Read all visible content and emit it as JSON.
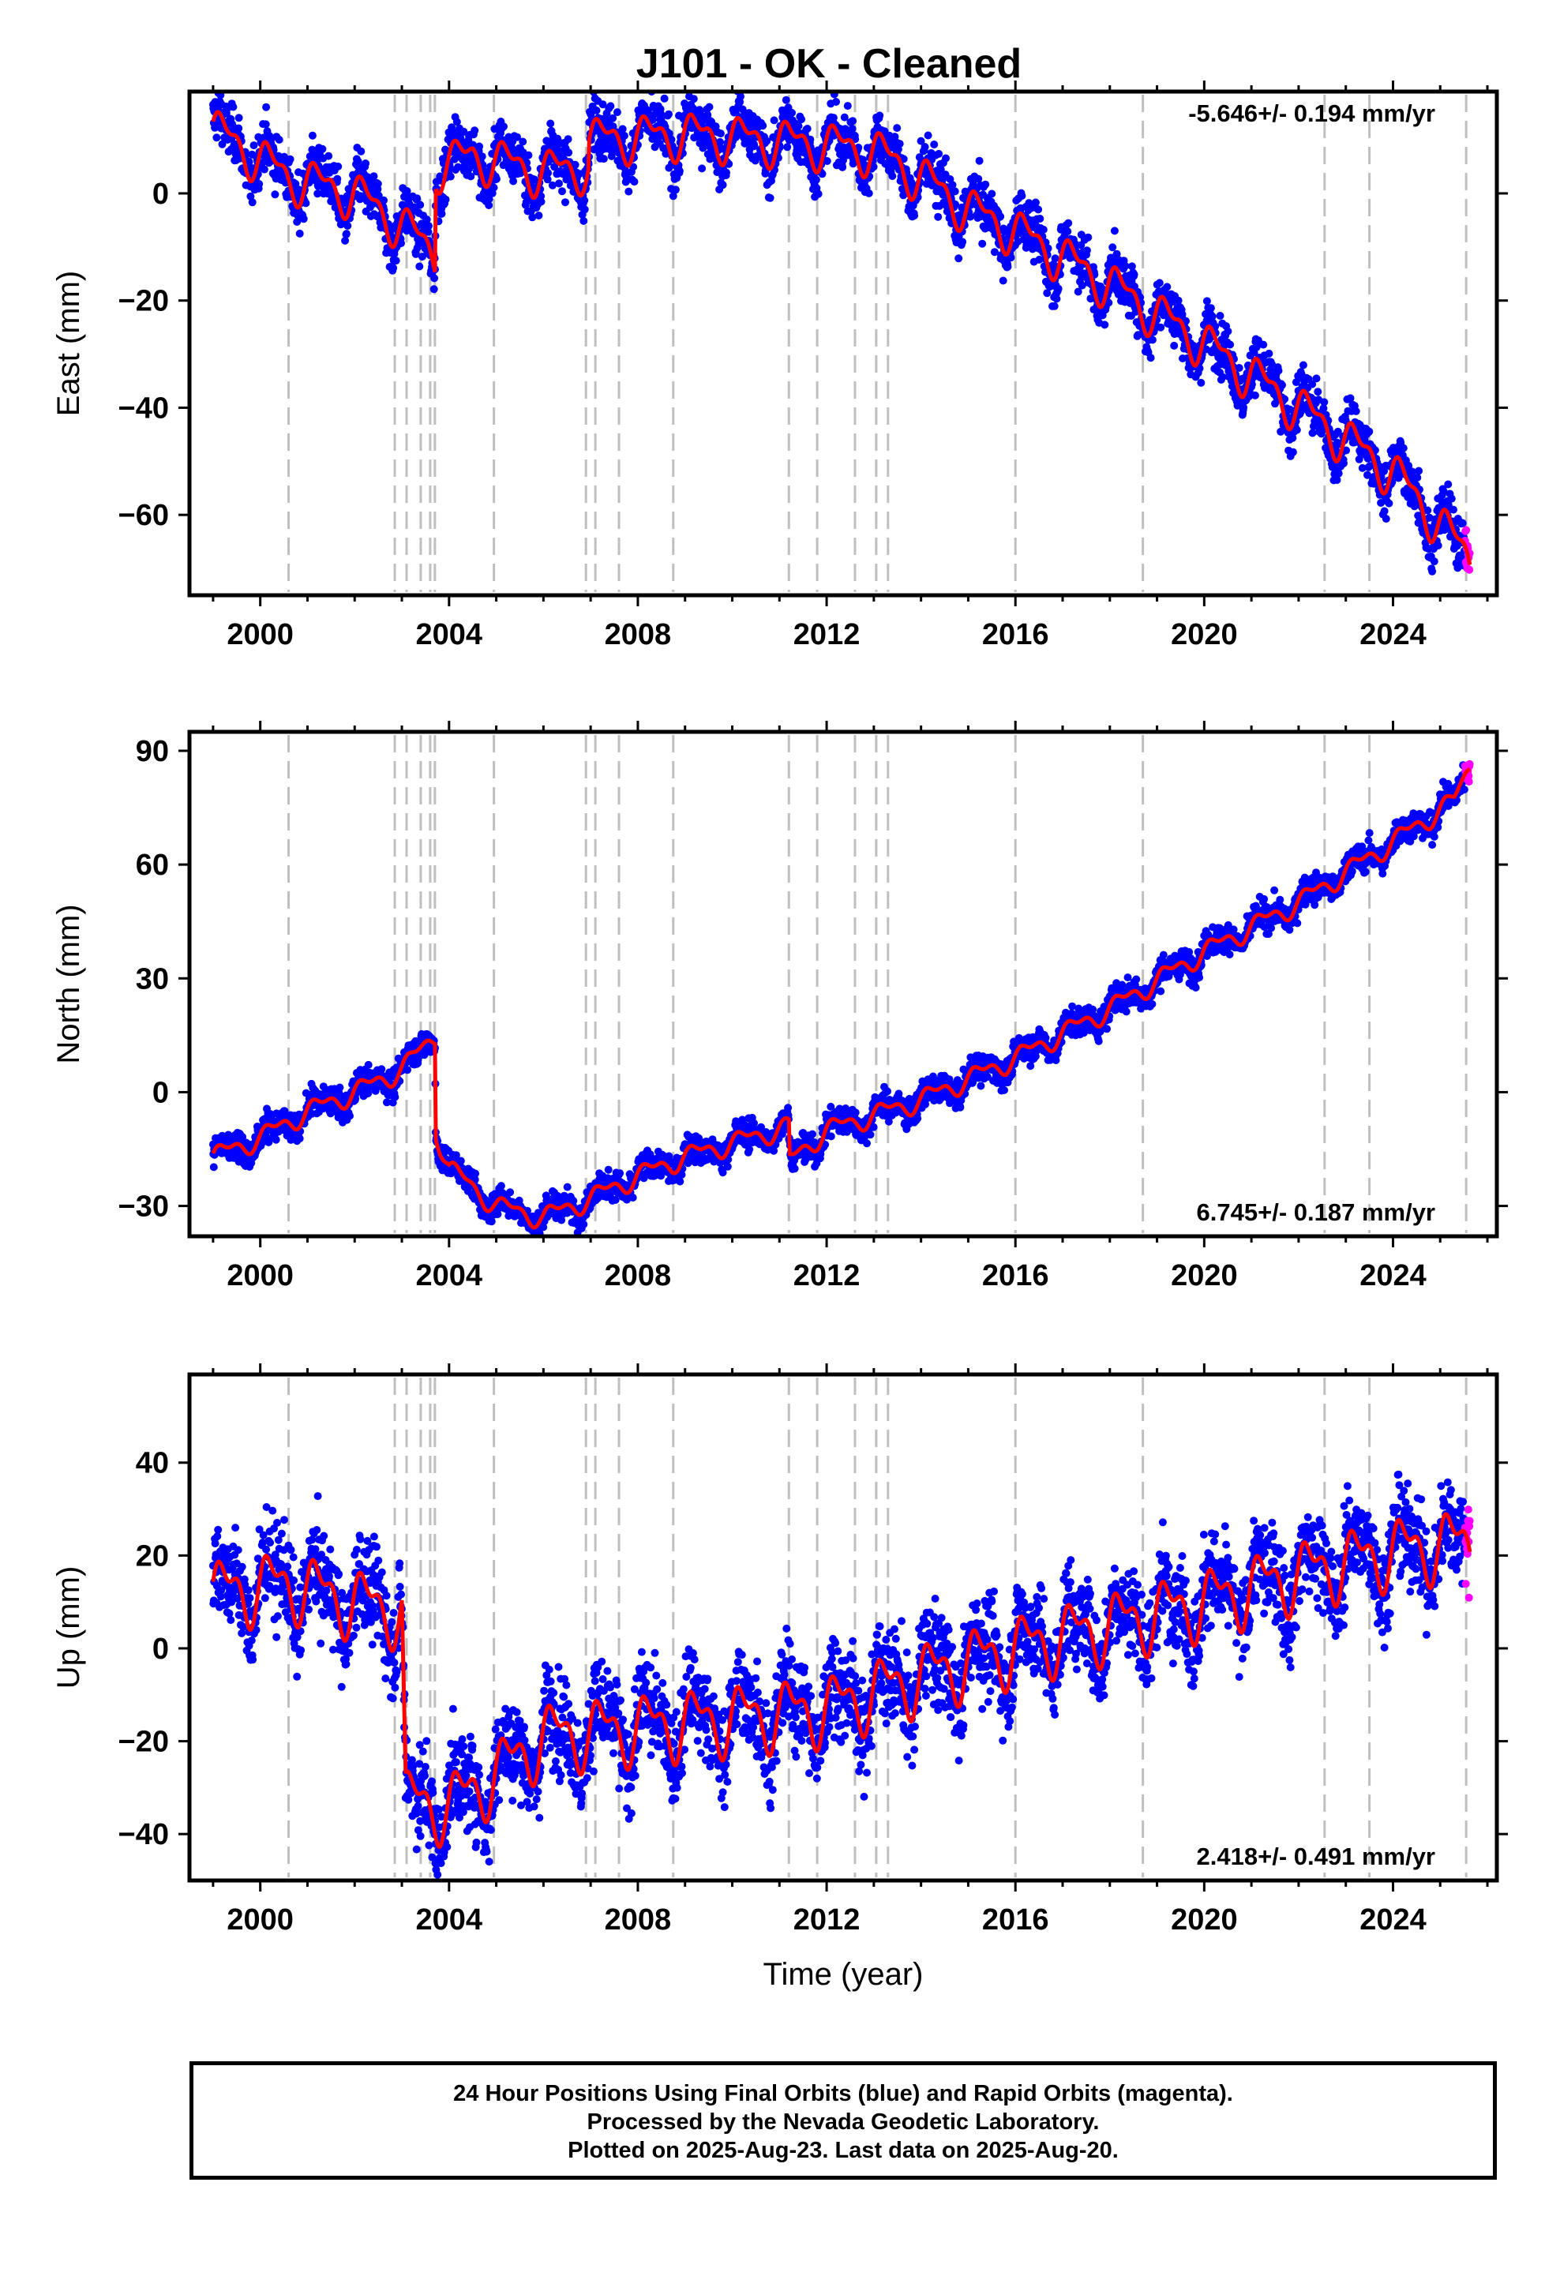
{
  "title": "J101  - OK - Cleaned",
  "footer": {
    "line1": "24 Hour Positions Using Final Orbits (blue) and Rapid Orbits (magenta).",
    "line2": "Processed by the Nevada Geodetic Laboratory.",
    "line3": "Plotted on 2025-Aug-23. Last data on 2025-Aug-20."
  },
  "colors": {
    "final_orbits": "#0000ff",
    "rapid_orbits": "#ff00ff",
    "model_fit": "#ff0000",
    "event_lines": "#bfbfbf"
  },
  "chart_data": [
    {
      "type": "scatter",
      "panel": "east",
      "ylabel": "East (mm)",
      "xlabel": "",
      "xlim": [
        1998.5,
        2026.2
      ],
      "ylim": [
        -75,
        19
      ],
      "xticks": [
        2000,
        2004,
        2008,
        2012,
        2016,
        2020,
        2024
      ],
      "yticks": [
        -60,
        -40,
        -20,
        0
      ],
      "rate_label": "-5.646+/- 0.194 mm/yr",
      "rate_position": "top-right",
      "data_start": 1999.0,
      "data_end": 2025.63,
      "rapid_start": 2025.52,
      "trend": [
        [
          1999.0,
          12
        ],
        [
          2000.6,
          3
        ],
        [
          2002.0,
          0
        ],
        [
          2003.0,
          -6
        ],
        [
          2003.7,
          -11
        ],
        [
          2003.72,
          5
        ],
        [
          2004.5,
          7
        ],
        [
          2006.0,
          4
        ],
        [
          2006.95,
          5
        ],
        [
          2006.97,
          10
        ],
        [
          2009.0,
          11
        ],
        [
          2012.0,
          9
        ],
        [
          2013.0,
          8
        ],
        [
          2014.0,
          3
        ],
        [
          2015.0,
          -3
        ],
        [
          2016.0,
          -7
        ],
        [
          2018.0,
          -17
        ],
        [
          2020.0,
          -28
        ],
        [
          2022.0,
          -40
        ],
        [
          2024.0,
          -52
        ],
        [
          2025.63,
          -68
        ]
      ],
      "scatter_sd": 2.4,
      "seasonal_amp": 3.5,
      "events": [
        2000.6,
        2002.85,
        2003.1,
        2003.4,
        2003.6,
        2003.7,
        2004.95,
        2006.9,
        2007.1,
        2007.6,
        2008.75,
        2011.2,
        2011.8,
        2012.6,
        2013.05,
        2013.3,
        2016.0,
        2018.7,
        2022.55,
        2023.5,
        2025.55
      ]
    },
    {
      "type": "scatter",
      "panel": "north",
      "ylabel": "North (mm)",
      "xlabel": "",
      "xlim": [
        1998.5,
        2026.2
      ],
      "ylim": [
        -38,
        95
      ],
      "xticks": [
        2000,
        2004,
        2008,
        2012,
        2016,
        2020,
        2024
      ],
      "yticks": [
        -30,
        0,
        30,
        60,
        90
      ],
      "rate_label": "6.745+/- 0.187 mm/yr",
      "rate_position": "bottom-right",
      "data_start": 1999.0,
      "data_end": 2025.63,
      "rapid_start": 2025.52,
      "trend": [
        [
          1999.0,
          -17
        ],
        [
          2000.0,
          -12
        ],
        [
          2001.0,
          -5
        ],
        [
          2002.0,
          0
        ],
        [
          2003.0,
          6
        ],
        [
          2003.7,
          15
        ],
        [
          2003.72,
          -10
        ],
        [
          2004.0,
          -20
        ],
        [
          2005.0,
          -30
        ],
        [
          2006.0,
          -33
        ],
        [
          2007.0,
          -28
        ],
        [
          2008.0,
          -22
        ],
        [
          2009.0,
          -17
        ],
        [
          2011.2,
          -9
        ],
        [
          2011.22,
          -18
        ],
        [
          2012.0,
          -10
        ],
        [
          2013.0,
          -6
        ],
        [
          2014.0,
          -2
        ],
        [
          2016.0,
          9
        ],
        [
          2018.0,
          22
        ],
        [
          2020.0,
          37
        ],
        [
          2022.0,
          50
        ],
        [
          2024.0,
          66
        ],
        [
          2025.3,
          77
        ],
        [
          2025.63,
          86
        ]
      ],
      "scatter_sd": 1.8,
      "seasonal_amp": 2.2,
      "events": [
        2000.6,
        2002.85,
        2003.1,
        2003.4,
        2003.6,
        2003.7,
        2004.95,
        2006.9,
        2007.1,
        2007.6,
        2008.75,
        2011.2,
        2011.8,
        2012.6,
        2013.05,
        2013.3,
        2016.0,
        2018.7,
        2022.55,
        2023.5,
        2025.55
      ]
    },
    {
      "type": "scatter",
      "panel": "up",
      "ylabel": "Up (mm)",
      "xlabel": "Time (year)",
      "xlim": [
        1998.5,
        2026.2
      ],
      "ylim": [
        -50,
        59
      ],
      "xticks": [
        2000,
        2004,
        2008,
        2012,
        2016,
        2020,
        2024
      ],
      "yticks": [
        -40,
        -20,
        0,
        20,
        40
      ],
      "rate_label": "2.418+/- 0.491 mm/yr",
      "rate_position": "bottom-right",
      "data_start": 1999.0,
      "data_end": 2025.63,
      "rapid_start": 2025.52,
      "trend": [
        [
          1999.0,
          12
        ],
        [
          2000.6,
          14
        ],
        [
          2002.0,
          10
        ],
        [
          2003.0,
          8
        ],
        [
          2003.08,
          -33
        ],
        [
          2004.0,
          -34
        ],
        [
          2005.0,
          -27
        ],
        [
          2006.0,
          -19
        ],
        [
          2008.0,
          -17
        ],
        [
          2010.0,
          -15
        ],
        [
          2012.0,
          -13
        ],
        [
          2014.0,
          -6
        ],
        [
          2016.0,
          0
        ],
        [
          2018.0,
          5
        ],
        [
          2020.0,
          10
        ],
        [
          2022.0,
          16
        ],
        [
          2024.0,
          21
        ],
        [
          2025.63,
          23
        ]
      ],
      "scatter_sd": 5.0,
      "seasonal_amp": 6.0,
      "events": [
        2000.6,
        2002.85,
        2003.1,
        2003.4,
        2003.6,
        2003.7,
        2004.95,
        2006.9,
        2007.1,
        2007.6,
        2008.75,
        2011.2,
        2011.8,
        2012.6,
        2013.05,
        2013.3,
        2016.0,
        2018.7,
        2022.55,
        2023.5,
        2025.55
      ]
    }
  ]
}
